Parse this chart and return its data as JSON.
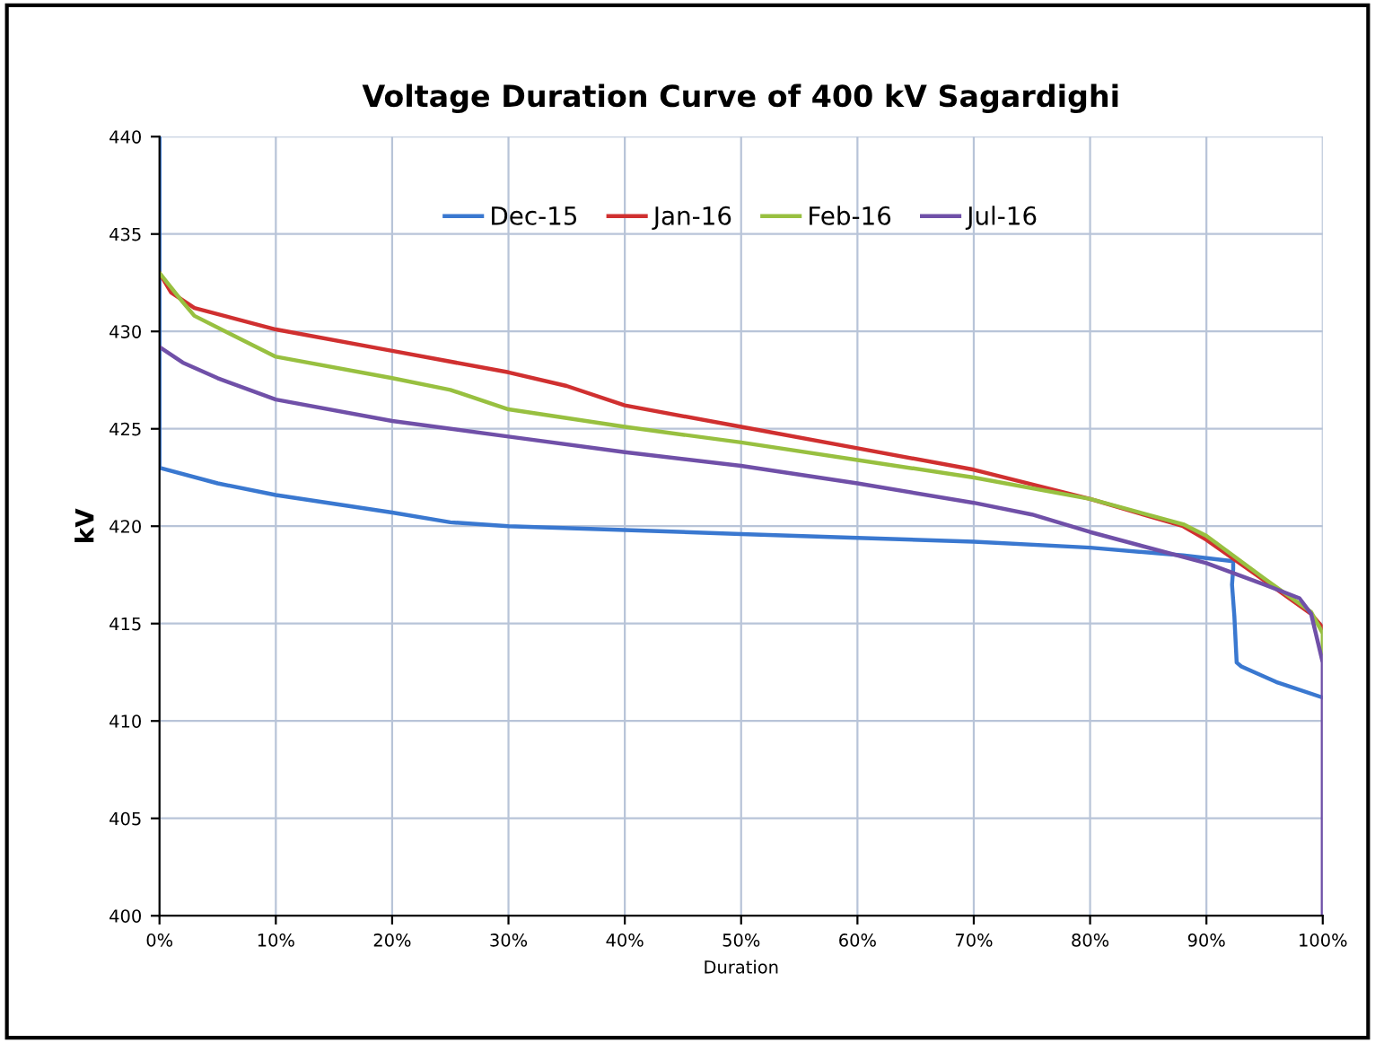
{
  "chart_data": {
    "type": "line",
    "title": "Voltage Duration Curve of 400 kV Sagardighi",
    "xlabel": "Duration",
    "ylabel": "kV",
    "xlim": [
      0,
      100
    ],
    "xticks": [
      {
        "value": 0,
        "label": "0%"
      },
      {
        "value": 10,
        "label": "10%"
      },
      {
        "value": 20,
        "label": "20%"
      },
      {
        "value": 30,
        "label": "30%"
      },
      {
        "value": 40,
        "label": "40%"
      },
      {
        "value": 50,
        "label": "50%"
      },
      {
        "value": 60,
        "label": "60%"
      },
      {
        "value": 70,
        "label": "70%"
      },
      {
        "value": 80,
        "label": "80%"
      },
      {
        "value": 90,
        "label": "90%"
      },
      {
        "value": 100,
        "label": "100%"
      }
    ],
    "ylim": [
      400,
      440
    ],
    "yticks": [
      400,
      405,
      410,
      415,
      420,
      425,
      430,
      435,
      440
    ],
    "grid": true,
    "legend": "top",
    "marker": "none",
    "line_style": "solid",
    "series": [
      {
        "name": "Dec-15",
        "color": "#3a78d0",
        "x": [
          0,
          0,
          5,
          10,
          20,
          25,
          30,
          40,
          50,
          60,
          70,
          80,
          88,
          92.3,
          92.3,
          92.2,
          92.4,
          92.6,
          93,
          96,
          100
        ],
        "values": [
          440,
          423,
          422.2,
          421.6,
          420.7,
          420.2,
          420,
          419.8,
          419.6,
          419.4,
          419.2,
          418.9,
          418.5,
          418.2,
          417.8,
          417,
          415.4,
          413,
          412.8,
          412,
          411.2
        ]
      },
      {
        "name": "Jan-16",
        "color": "#d03030",
        "x": [
          0,
          1,
          3,
          10,
          20,
          30,
          35,
          40,
          50,
          60,
          70,
          80,
          88,
          90,
          95,
          99,
          100
        ],
        "values": [
          433,
          432,
          431.2,
          430.1,
          429,
          427.9,
          427.2,
          426.2,
          425.1,
          424,
          422.9,
          421.4,
          420,
          419.3,
          417.2,
          415.5,
          414.8
        ]
      },
      {
        "name": "Feb-16",
        "color": "#98c040",
        "x": [
          0,
          2,
          3,
          10,
          20,
          25,
          30,
          40,
          50,
          60,
          70,
          80,
          88,
          90,
          95,
          99,
          100,
          100
        ],
        "values": [
          433,
          431.5,
          430.8,
          428.7,
          427.6,
          427,
          426,
          425.1,
          424.3,
          423.4,
          422.5,
          421.4,
          420.1,
          419.5,
          417.3,
          415.6,
          414.5,
          413.5
        ]
      },
      {
        "name": "Jul-16",
        "color": "#7050a8",
        "x": [
          0,
          2,
          5,
          10,
          20,
          30,
          40,
          50,
          60,
          70,
          75,
          80,
          90,
          95,
          98,
          99,
          100,
          100
        ],
        "values": [
          429.2,
          428.4,
          427.6,
          426.5,
          425.4,
          424.6,
          423.8,
          423.1,
          422.2,
          421.2,
          420.6,
          419.7,
          418.1,
          417,
          416.3,
          415.5,
          413,
          400
        ]
      }
    ]
  }
}
